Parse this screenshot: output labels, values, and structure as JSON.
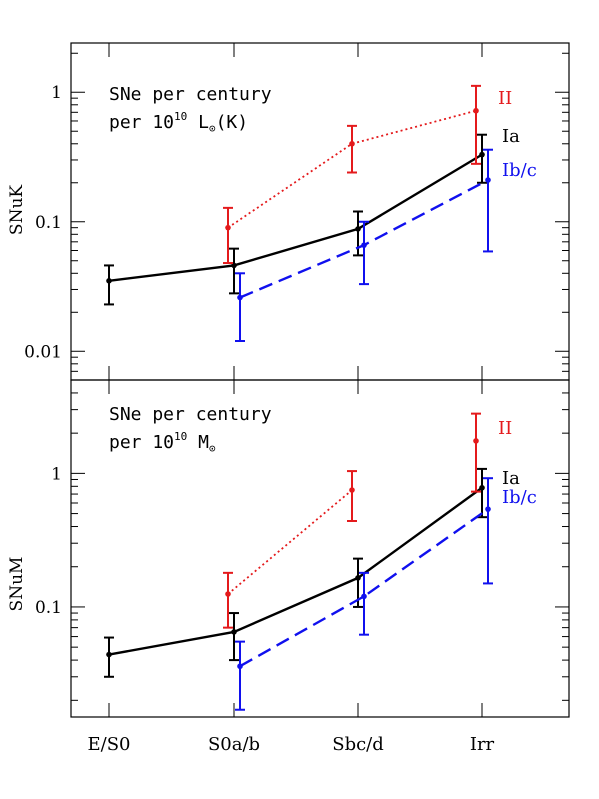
{
  "colors": {
    "Ia": "#000000",
    "II": "#e41a1c",
    "Ib/c": "#1010ee",
    "axes": "#000000"
  },
  "chart_data": [
    {
      "type": "line",
      "panel": "top",
      "ylabel": "SNuK",
      "yscale": "log",
      "ylim": [
        0.006,
        2.4
      ],
      "yticks": [
        0.01,
        0.1,
        1
      ],
      "yticklabels": [
        "0.01",
        "0.1",
        "1"
      ],
      "annotation": {
        "line1": "SNe per century",
        "line2_pre": "per 10",
        "line2_sup": "10",
        "line2_post": " L",
        "line2_sub": "⊙",
        "line2_end": "(K)"
      },
      "categories": [
        "E/S0",
        "S0a/b",
        "Sbc/d",
        "Irr"
      ],
      "series": [
        {
          "name": "Ia",
          "style": "solid",
          "points": [
            {
              "x": "E/S0",
              "y": 0.035,
              "lo": 0.023,
              "hi": 0.046
            },
            {
              "x": "S0a/b",
              "y": 0.046,
              "lo": 0.028,
              "hi": 0.062
            },
            {
              "x": "Sbc/d",
              "y": 0.088,
              "lo": 0.055,
              "hi": 0.12
            },
            {
              "x": "Irr",
              "y": 0.33,
              "lo": 0.2,
              "hi": 0.47
            }
          ]
        },
        {
          "name": "II",
          "style": "dotted",
          "points": [
            {
              "x": "S0a/b",
              "y": 0.09,
              "lo": 0.048,
              "hi": 0.128
            },
            {
              "x": "Sbc/d",
              "y": 0.4,
              "lo": 0.24,
              "hi": 0.55
            },
            {
              "x": "Irr",
              "y": 0.72,
              "lo": 0.28,
              "hi": 1.12
            }
          ]
        },
        {
          "name": "Ib/c",
          "style": "dashed",
          "points": [
            {
              "x": "S0a/b",
              "y": 0.026,
              "lo": 0.012,
              "hi": 0.04
            },
            {
              "x": "Sbc/d",
              "y": 0.066,
              "lo": 0.033,
              "hi": 0.1
            },
            {
              "x": "Irr",
              "y": 0.21,
              "lo": 0.059,
              "hi": 0.36
            }
          ]
        }
      ]
    },
    {
      "type": "line",
      "panel": "bottom",
      "ylabel": "SNuM",
      "yscale": "log",
      "ylim": [
        0.015,
        5.0
      ],
      "yticks": [
        0.1,
        1
      ],
      "yticklabels": [
        "0.1",
        "1"
      ],
      "annotation": {
        "line1": "SNe per century",
        "line2_pre": "per 10",
        "line2_sup": "10",
        "line2_post": " M",
        "line2_sub": "⊙",
        "line2_end": ""
      },
      "categories": [
        "E/S0",
        "S0a/b",
        "Sbc/d",
        "Irr"
      ],
      "series": [
        {
          "name": "Ia",
          "style": "solid",
          "points": [
            {
              "x": "E/S0",
              "y": 0.044,
              "lo": 0.03,
              "hi": 0.059
            },
            {
              "x": "S0a/b",
              "y": 0.065,
              "lo": 0.04,
              "hi": 0.09
            },
            {
              "x": "Sbc/d",
              "y": 0.165,
              "lo": 0.1,
              "hi": 0.23
            },
            {
              "x": "Irr",
              "y": 0.78,
              "lo": 0.47,
              "hi": 1.08
            }
          ]
        },
        {
          "name": "II",
          "style": "dotted",
          "points": [
            {
              "x": "S0a/b",
              "y": 0.125,
              "lo": 0.07,
              "hi": 0.18
            },
            {
              "x": "Sbc/d",
              "y": 0.75,
              "lo": 0.44,
              "hi": 1.04
            }
          ],
          "extra_points": [
            {
              "x": "Irr",
              "y": 1.75,
              "lo": 0.73,
              "hi": 2.8
            }
          ]
        },
        {
          "name": "Ib/c",
          "style": "dashed",
          "points": [
            {
              "x": "S0a/b",
              "y": 0.036,
              "lo": 0.017,
              "hi": 0.055
            },
            {
              "x": "Sbc/d",
              "y": 0.12,
              "lo": 0.062,
              "hi": 0.18
            },
            {
              "x": "Irr",
              "y": 0.54,
              "lo": 0.15,
              "hi": 0.92
            }
          ]
        }
      ]
    }
  ],
  "x_labels": [
    "E/S0",
    "S0a/b",
    "Sbc/d",
    "Irr"
  ]
}
